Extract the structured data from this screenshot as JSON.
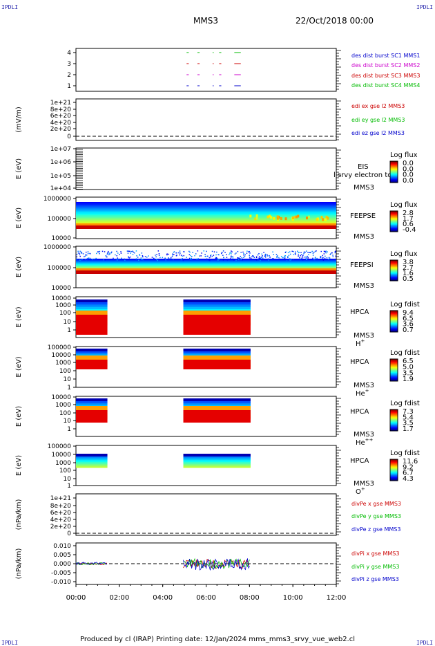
{
  "corners": {
    "tl": "IPDLI",
    "tr": "IPDLI",
    "bl": "IPDLI",
    "br": "IPDLI"
  },
  "header": {
    "spacecraft": "MMS3",
    "date": "22/Oct/2018 00:00"
  },
  "footer": "Produced by cl (IRAP)   Printing date: 12/Jan/2024   mms_mms3_srvy_vue_web2.cl",
  "colors": {
    "blue": "#0000cc",
    "magenta": "#cc00cc",
    "red": "#cc0000",
    "green": "#00bb00"
  },
  "chart_data": {
    "type": "panel-stack",
    "x_ticks": [
      "00:00",
      "02:00",
      "04:00",
      "06:00",
      "08:00",
      "10:00",
      "12:00"
    ],
    "x_range_hours": [
      0,
      12
    ],
    "intervals": {
      "des_burst": [
        [
          5.1,
          5.2
        ],
        [
          5.6,
          5.7
        ],
        [
          6.3,
          6.35
        ],
        [
          6.6,
          6.7
        ],
        [
          7.3,
          7.6
        ]
      ],
      "hpca": [
        [
          0,
          1.45
        ],
        [
          4.95,
          8.05
        ]
      ]
    },
    "panels": [
      {
        "id": "des",
        "ylabel": "",
        "yticks": [
          "4",
          "3",
          "2",
          "1"
        ],
        "legend": [
          {
            "text": "des dist burst SC1 MMS1",
            "color": "blue"
          },
          {
            "text": "des dist burst SC2 MMS2",
            "color": "magenta"
          },
          {
            "text": "des dist burst SC3 MMS3",
            "color": "red"
          },
          {
            "text": "des dist burst SC4 MMS4",
            "color": "green"
          }
        ]
      },
      {
        "id": "edi",
        "ylabel": "(mV/m)",
        "yticks": [
          "1e+21",
          "8e+20",
          "6e+20",
          "4e+20",
          "2e+20",
          "0"
        ],
        "legend": [
          {
            "text": "edi ex gse l2 MMS3",
            "color": "red"
          },
          {
            "text": "edi ey gse l2 MMS3",
            "color": "green"
          },
          {
            "text": "edi ez gse l2 MMS3",
            "color": "blue"
          }
        ]
      },
      {
        "id": "eis",
        "ylabel": "E (eV)",
        "yticks": [
          "1e+07",
          "1e+06",
          "1e+05",
          "1e+04"
        ],
        "name": "EIS",
        "sc": "MMS3",
        "extra": "l srvy electron to",
        "cbar_title": "Log flux",
        "cbar_ticks": [
          "0.0",
          "0.0",
          "0.0",
          "0.0"
        ]
      },
      {
        "id": "feepse",
        "ylabel": "E (eV)",
        "yticks": [
          "1000000",
          "100000",
          "10000"
        ],
        "name": "FEEPSE",
        "sc": "MMS3",
        "cbar_title": "Log flux",
        "cbar_ticks": [
          "2.8",
          "1.7",
          "0.6",
          "-0.4"
        ]
      },
      {
        "id": "feepsi",
        "ylabel": "E (eV)",
        "yticks": [
          "1000000",
          "100000",
          "10000"
        ],
        "name": "FEEPSI",
        "sc": "MMS3",
        "cbar_title": "Log flux",
        "cbar_ticks": [
          "3.8",
          "2.7",
          "1.6",
          "0.5"
        ]
      },
      {
        "id": "hpca_h",
        "ylabel": "E (eV)",
        "yticks": [
          "10000",
          "1000",
          "100",
          "10",
          "1"
        ],
        "name": "HPCA",
        "sc": "MMS3",
        "species": "H",
        "charge": "+",
        "cbar_title": "Log fdist",
        "cbar_ticks": [
          "9.4",
          "6.5",
          "3.6",
          "0.7"
        ]
      },
      {
        "id": "hpca_he",
        "ylabel": "E (eV)",
        "yticks": [
          "100000",
          "10000",
          "1000",
          "100",
          "10",
          "1"
        ],
        "name": "HPCA",
        "sc": "MMS3",
        "species": "He",
        "charge": "+",
        "cbar_title": "Log fdist",
        "cbar_ticks": [
          "6.5",
          "5.0",
          "3.5",
          "1.9"
        ]
      },
      {
        "id": "hpca_hepp",
        "ylabel": "E (eV)",
        "yticks": [
          "10000",
          "1000",
          "100",
          "10",
          "1"
        ],
        "name": "HPCA",
        "sc": "MMS3",
        "species": "He",
        "charge": "++",
        "cbar_title": "Log fdist",
        "cbar_ticks": [
          "7.3",
          "5.4",
          "3.5",
          "1.7"
        ]
      },
      {
        "id": "hpca_o",
        "ylabel": "E (eV)",
        "yticks": [
          "100000",
          "10000",
          "1000",
          "100",
          "10",
          "1"
        ],
        "name": "HPCA",
        "sc": "MMS3",
        "species": "O",
        "charge": "+",
        "cbar_title": "Log fdist",
        "cbar_ticks": [
          "11.6",
          "9.2",
          "6.7",
          "4.3"
        ]
      },
      {
        "id": "divpe",
        "ylabel": "(nPa/km)",
        "yticks": [
          "1e+21",
          "8e+20",
          "6e+20",
          "4e+20",
          "2e+20",
          "0"
        ],
        "legend": [
          {
            "text": "divPe x gse MMS3",
            "color": "red"
          },
          {
            "text": "divPe y gse MMS3",
            "color": "green"
          },
          {
            "text": "divPe z gse MMS3",
            "color": "blue"
          }
        ]
      },
      {
        "id": "divpi",
        "ylabel": "(nPa/km)",
        "yticks": [
          "0.010",
          "0.005",
          "0.000",
          "-0.005",
          "-0.010"
        ],
        "legend": [
          {
            "text": "divPi x gse MMS3",
            "color": "red"
          },
          {
            "text": "divPi y gse MMS3",
            "color": "green"
          },
          {
            "text": "divPi z gse MMS3",
            "color": "blue"
          }
        ]
      }
    ]
  }
}
